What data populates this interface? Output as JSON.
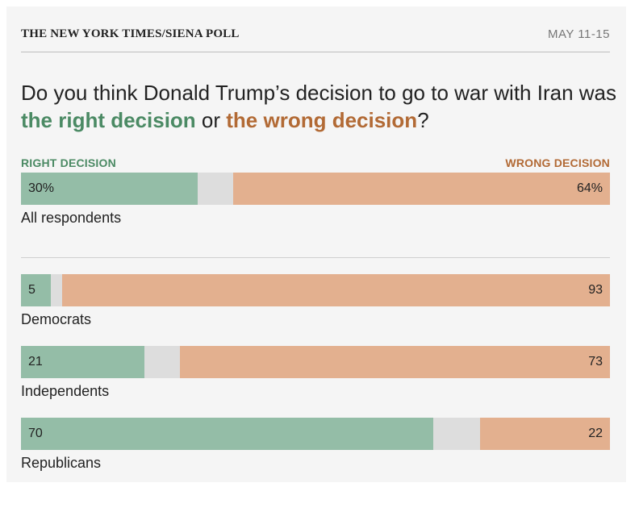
{
  "header": {
    "source": "THE NEW YORK TIMES/SIENA POLL",
    "dates": "MAY 11-15"
  },
  "question": {
    "prefix": "Do you think Donald Trump’s decision to go to war with Iran was ",
    "right_phrase": "the right decision",
    "middle": " or ",
    "wrong_phrase": "the wrong decision",
    "suffix": "?"
  },
  "colors": {
    "right": "#94bda7",
    "wrong": "#e3b08f",
    "unsure": "#dddddd",
    "right_text": "#4b8a64",
    "wrong_text": "#b26a35"
  },
  "chart_data": {
    "type": "bar",
    "orientation": "horizontal",
    "stacked": true,
    "legend": {
      "right": "RIGHT DECISION",
      "wrong": "WRONG DECISION"
    },
    "xlim": [
      0,
      100
    ],
    "categories": [
      "All respondents",
      "Democrats",
      "Independents",
      "Republicans"
    ],
    "series": [
      {
        "name": "RIGHT DECISION",
        "values": [
          30,
          5,
          21,
          70
        ]
      },
      {
        "name": "WRONG DECISION",
        "values": [
          64,
          93,
          73,
          22
        ]
      }
    ],
    "data_labels": {
      "right": [
        "30%",
        "5",
        "21",
        "70"
      ],
      "wrong": [
        "64%",
        "93",
        "73",
        "22"
      ]
    }
  }
}
